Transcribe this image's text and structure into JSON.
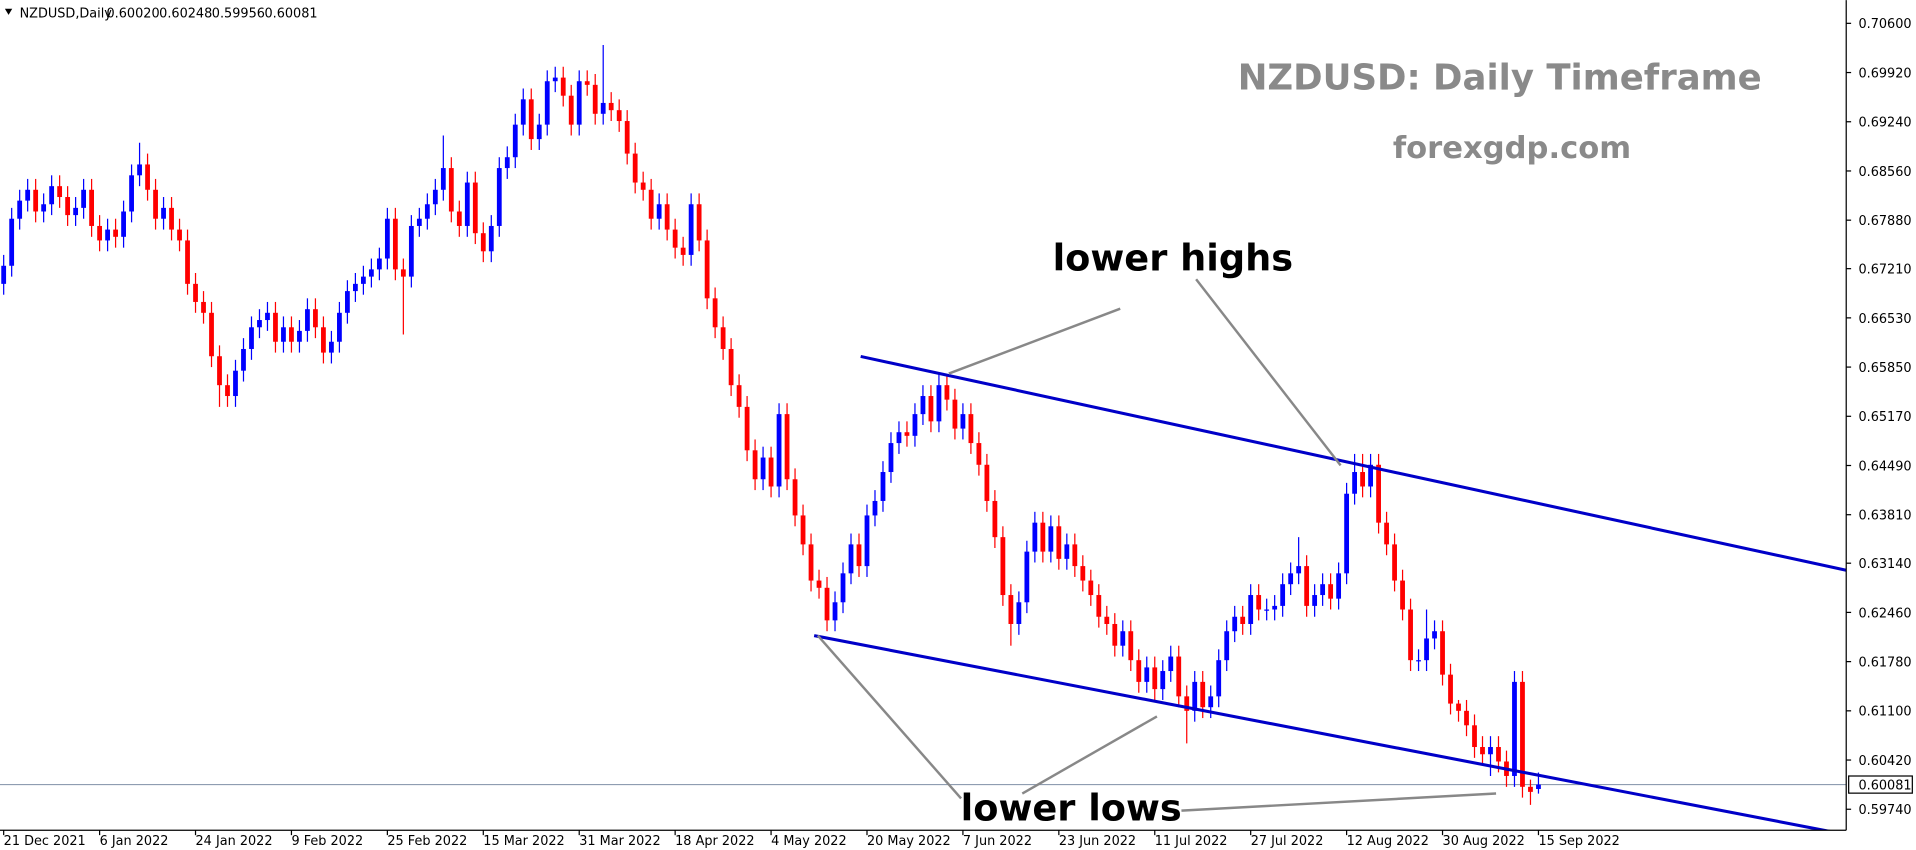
{
  "chart_data": {
    "type": "candlestick",
    "header": {
      "symbol": "NZDUSD,Daily",
      "ohlc": [
        "0.60020",
        "0.60248",
        "0.59956",
        "0.60081"
      ]
    },
    "title": "NZDUSD: Daily Timeframe",
    "subtitle": "forexgdp.com",
    "annotations": [
      "lower highs",
      "lower lows"
    ],
    "up_color": "#0000ff",
    "down_color": "#ff0000",
    "xlim": [
      -0.46,
      230.5
    ],
    "xticks": [
      {
        "value": 0,
        "label": "21 Dec 2021"
      },
      {
        "value": 12,
        "label": "6 Jan 2022"
      },
      {
        "value": 24,
        "label": "24 Jan 2022"
      },
      {
        "value": 36,
        "label": "9 Feb 2022"
      },
      {
        "value": 48,
        "label": "25 Feb 2022"
      },
      {
        "value": 60,
        "label": "15 Mar 2022"
      },
      {
        "value": 72,
        "label": "31 Mar 2022"
      },
      {
        "value": 84,
        "label": "18 Apr 2022"
      },
      {
        "value": 96,
        "label": "4 May 2022"
      },
      {
        "value": 108,
        "label": "20 May 2022"
      },
      {
        "value": 120,
        "label": "7 Jun 2022"
      },
      {
        "value": 132,
        "label": "23 Jun 2022"
      },
      {
        "value": 144,
        "label": "11 Jul 2022"
      },
      {
        "value": 156,
        "label": "27 Jul 2022"
      },
      {
        "value": 168,
        "label": "12 Aug 2022"
      },
      {
        "value": 180,
        "label": "30 Aug 2022"
      },
      {
        "value": 192,
        "label": "15 Sep 2022"
      }
    ],
    "ylim": [
      0.5945,
      0.7092
    ],
    "yticks": [
      {
        "value": 0.706,
        "label": "0.70600"
      },
      {
        "value": 0.6992,
        "label": "0.69920"
      },
      {
        "value": 0.6924,
        "label": "0.69240"
      },
      {
        "value": 0.6856,
        "label": "0.68560"
      },
      {
        "value": 0.6788,
        "label": "0.67880"
      },
      {
        "value": 0.6721,
        "label": "0.67210"
      },
      {
        "value": 0.6653,
        "label": "0.66530"
      },
      {
        "value": 0.6585,
        "label": "0.65850"
      },
      {
        "value": 0.6517,
        "label": "0.65170"
      },
      {
        "value": 0.6449,
        "label": "0.64490"
      },
      {
        "value": 0.6381,
        "label": "0.63810"
      },
      {
        "value": 0.6314,
        "label": "0.63140"
      },
      {
        "value": 0.6246,
        "label": "0.62460"
      },
      {
        "value": 0.6178,
        "label": "0.61780"
      },
      {
        "value": 0.611,
        "label": "0.61100"
      },
      {
        "value": 0.6042,
        "label": "0.60420"
      },
      {
        "value": 0.5974,
        "label": "0.59740"
      }
    ],
    "last_price": {
      "value": 0.60081,
      "label": "0.60081"
    },
    "open": [
      0.67,
      0.6725,
      0.679,
      0.6815,
      0.683,
      0.68,
      0.681,
      0.6835,
      0.682,
      0.6795,
      0.6805,
      0.683,
      0.678,
      0.676,
      0.6775,
      0.6765,
      0.68,
      0.685,
      0.6865,
      0.683,
      0.679,
      0.6805,
      0.6775,
      0.676,
      0.67,
      0.6675,
      0.666,
      0.66,
      0.656,
      0.6545,
      0.658,
      0.661,
      0.664,
      0.665,
      0.666,
      0.662,
      0.664,
      0.662,
      0.6635,
      0.6665,
      0.664,
      0.6605,
      0.662,
      0.666,
      0.669,
      0.67,
      0.671,
      0.672,
      0.6735,
      0.679,
      0.672,
      0.671,
      0.678,
      0.679,
      0.681,
      0.683,
      0.686,
      0.68,
      0.678,
      0.684,
      0.677,
      0.6745,
      0.678,
      0.686,
      0.6875,
      0.692,
      0.6955,
      0.69,
      0.692,
      0.698,
      0.6985,
      0.696,
      0.692,
      0.698,
      0.6975,
      0.6935,
      0.695,
      0.694,
      0.6925,
      0.688,
      0.684,
      0.683,
      0.679,
      0.681,
      0.6775,
      0.675,
      0.674,
      0.681,
      0.676,
      0.668,
      0.664,
      0.661,
      0.656,
      0.653,
      0.647,
      0.643,
      0.646,
      0.642,
      0.652,
      0.643,
      0.638,
      0.634,
      0.629,
      0.628,
      0.6235,
      0.626,
      0.63,
      0.634,
      0.631,
      0.638,
      0.64,
      0.644,
      0.648,
      0.6495,
      0.649,
      0.652,
      0.6545,
      0.651,
      0.656,
      0.654,
      0.65,
      0.652,
      0.648,
      0.645,
      0.64,
      0.635,
      0.627,
      0.623,
      0.626,
      0.633,
      0.637,
      0.633,
      0.6365,
      0.632,
      0.634,
      0.631,
      0.629,
      0.627,
      0.624,
      0.623,
      0.62,
      0.622,
      0.618,
      0.615,
      0.617,
      0.614,
      0.6165,
      0.6185,
      0.613,
      0.611,
      0.615,
      0.6115,
      0.613,
      0.618,
      0.622,
      0.624,
      0.623,
      0.627,
      0.625,
      0.625,
      0.6255,
      0.6285,
      0.63,
      0.631,
      0.6255,
      0.627,
      0.6285,
      0.6265,
      0.63,
      0.641,
      0.644,
      0.642,
      0.645,
      0.637,
      0.634,
      0.629,
      0.625,
      0.618,
      0.618,
      0.621,
      0.622,
      0.616,
      0.612,
      0.611,
      0.609,
      0.606,
      0.605,
      0.606,
      0.604,
      0.602,
      0.615,
      0.6005,
      0.6002
    ],
    "high": [
      0.674,
      0.6805,
      0.683,
      0.6845,
      0.6845,
      0.6825,
      0.685,
      0.685,
      0.6835,
      0.682,
      0.6845,
      0.6845,
      0.6795,
      0.679,
      0.679,
      0.6815,
      0.6865,
      0.6895,
      0.688,
      0.6845,
      0.682,
      0.682,
      0.679,
      0.6775,
      0.6715,
      0.669,
      0.6675,
      0.6615,
      0.6575,
      0.6595,
      0.6625,
      0.6655,
      0.6665,
      0.6675,
      0.6675,
      0.6655,
      0.6655,
      0.665,
      0.668,
      0.668,
      0.6655,
      0.6635,
      0.6675,
      0.6705,
      0.6715,
      0.6725,
      0.6735,
      0.675,
      0.6805,
      0.6805,
      0.6735,
      0.6795,
      0.6805,
      0.6825,
      0.6845,
      0.6905,
      0.6875,
      0.6815,
      0.6855,
      0.6855,
      0.6785,
      0.6795,
      0.6875,
      0.689,
      0.6935,
      0.697,
      0.697,
      0.6935,
      0.6995,
      0.7,
      0.7,
      0.6975,
      0.6995,
      0.6995,
      0.699,
      0.703,
      0.6965,
      0.6955,
      0.694,
      0.6895,
      0.6855,
      0.6845,
      0.6825,
      0.6825,
      0.679,
      0.6765,
      0.6825,
      0.6825,
      0.6775,
      0.6695,
      0.6655,
      0.6625,
      0.6575,
      0.6545,
      0.6485,
      0.6475,
      0.6475,
      0.6535,
      0.6535,
      0.6445,
      0.6395,
      0.6355,
      0.6305,
      0.6295,
      0.6275,
      0.6315,
      0.6355,
      0.6355,
      0.6395,
      0.6415,
      0.6455,
      0.6495,
      0.651,
      0.651,
      0.6535,
      0.656,
      0.656,
      0.6575,
      0.6575,
      0.6555,
      0.6535,
      0.6535,
      0.6495,
      0.6465,
      0.6415,
      0.6365,
      0.6285,
      0.6275,
      0.6345,
      0.6385,
      0.6385,
      0.638,
      0.638,
      0.6355,
      0.6355,
      0.6325,
      0.6305,
      0.6285,
      0.6255,
      0.6245,
      0.6235,
      0.6235,
      0.6195,
      0.6185,
      0.6185,
      0.618,
      0.62,
      0.62,
      0.6145,
      0.6165,
      0.6165,
      0.6145,
      0.6195,
      0.6235,
      0.6255,
      0.6255,
      0.6285,
      0.6285,
      0.6265,
      0.627,
      0.63,
      0.6315,
      0.635,
      0.6325,
      0.6285,
      0.63,
      0.63,
      0.6315,
      0.6425,
      0.6465,
      0.6465,
      0.6465,
      0.6465,
      0.6385,
      0.6355,
      0.6305,
      0.6265,
      0.6195,
      0.625,
      0.6235,
      0.6235,
      0.6175,
      0.6125,
      0.6125,
      0.6105,
      0.6075,
      0.6075,
      0.6075,
      0.6055,
      0.6165,
      0.6165,
      0.6015,
      0.60248
    ],
    "low": [
      0.6685,
      0.671,
      0.6775,
      0.68,
      0.6785,
      0.6785,
      0.6795,
      0.6805,
      0.678,
      0.678,
      0.679,
      0.6765,
      0.6745,
      0.6745,
      0.675,
      0.675,
      0.6785,
      0.6835,
      0.6815,
      0.6775,
      0.6775,
      0.676,
      0.6745,
      0.6685,
      0.666,
      0.6645,
      0.6585,
      0.653,
      0.653,
      0.653,
      0.6565,
      0.6595,
      0.6625,
      0.6635,
      0.6605,
      0.6605,
      0.6605,
      0.6605,
      0.662,
      0.6625,
      0.659,
      0.659,
      0.6605,
      0.6645,
      0.6675,
      0.6685,
      0.6695,
      0.6705,
      0.672,
      0.6705,
      0.663,
      0.6695,
      0.6765,
      0.6775,
      0.6795,
      0.6815,
      0.6785,
      0.6765,
      0.6765,
      0.6755,
      0.673,
      0.673,
      0.6765,
      0.6845,
      0.686,
      0.6905,
      0.6885,
      0.6885,
      0.6905,
      0.6965,
      0.6945,
      0.6905,
      0.6905,
      0.696,
      0.692,
      0.692,
      0.6925,
      0.691,
      0.6865,
      0.6825,
      0.6815,
      0.6775,
      0.6775,
      0.676,
      0.6735,
      0.6725,
      0.6725,
      0.6745,
      0.6665,
      0.6625,
      0.6595,
      0.6545,
      0.6515,
      0.6455,
      0.6415,
      0.6415,
      0.6405,
      0.6405,
      0.6415,
      0.6365,
      0.6325,
      0.6275,
      0.6265,
      0.622,
      0.622,
      0.6245,
      0.6285,
      0.6295,
      0.6295,
      0.6365,
      0.6385,
      0.6425,
      0.6465,
      0.6475,
      0.6475,
      0.6505,
      0.6495,
      0.6495,
      0.6525,
      0.6485,
      0.6485,
      0.6465,
      0.6435,
      0.6385,
      0.6335,
      0.6255,
      0.62,
      0.6215,
      0.6245,
      0.6315,
      0.6315,
      0.6315,
      0.6305,
      0.6305,
      0.6295,
      0.6275,
      0.6255,
      0.6225,
      0.6215,
      0.6185,
      0.6185,
      0.6165,
      0.6135,
      0.6135,
      0.6125,
      0.6125,
      0.615,
      0.6115,
      0.6065,
      0.6095,
      0.61,
      0.61,
      0.6115,
      0.6165,
      0.6205,
      0.6215,
      0.6215,
      0.6235,
      0.6235,
      0.6235,
      0.624,
      0.627,
      0.6285,
      0.624,
      0.624,
      0.6255,
      0.625,
      0.625,
      0.6285,
      0.6395,
      0.6405,
      0.6405,
      0.6355,
      0.6325,
      0.6275,
      0.6235,
      0.6165,
      0.6165,
      0.6165,
      0.6195,
      0.6145,
      0.6105,
      0.6095,
      0.6075,
      0.6045,
      0.6035,
      0.602,
      0.6025,
      0.6005,
      0.6005,
      0.599,
      0.598,
      0.59956
    ],
    "close": [
      0.6725,
      0.679,
      0.6815,
      0.683,
      0.68,
      0.681,
      0.6835,
      0.682,
      0.6795,
      0.6805,
      0.683,
      0.678,
      0.676,
      0.6775,
      0.6765,
      0.68,
      0.685,
      0.6865,
      0.683,
      0.679,
      0.6805,
      0.6775,
      0.676,
      0.67,
      0.6675,
      0.666,
      0.66,
      0.656,
      0.6545,
      0.658,
      0.661,
      0.664,
      0.665,
      0.666,
      0.662,
      0.664,
      0.662,
      0.6635,
      0.6665,
      0.664,
      0.6605,
      0.662,
      0.666,
      0.669,
      0.67,
      0.671,
      0.672,
      0.6735,
      0.679,
      0.672,
      0.671,
      0.678,
      0.679,
      0.681,
      0.683,
      0.686,
      0.68,
      0.678,
      0.684,
      0.677,
      0.6745,
      0.678,
      0.686,
      0.6875,
      0.692,
      0.6955,
      0.69,
      0.692,
      0.698,
      0.6985,
      0.696,
      0.692,
      0.698,
      0.6975,
      0.6935,
      0.695,
      0.694,
      0.6925,
      0.688,
      0.684,
      0.683,
      0.679,
      0.681,
      0.6775,
      0.675,
      0.674,
      0.681,
      0.676,
      0.668,
      0.664,
      0.661,
      0.656,
      0.653,
      0.647,
      0.643,
      0.646,
      0.642,
      0.652,
      0.643,
      0.638,
      0.634,
      0.629,
      0.628,
      0.6235,
      0.626,
      0.63,
      0.634,
      0.631,
      0.638,
      0.64,
      0.644,
      0.648,
      0.6495,
      0.649,
      0.652,
      0.6545,
      0.651,
      0.656,
      0.654,
      0.65,
      0.652,
      0.648,
      0.645,
      0.64,
      0.635,
      0.627,
      0.623,
      0.626,
      0.633,
      0.637,
      0.633,
      0.6365,
      0.632,
      0.634,
      0.631,
      0.629,
      0.627,
      0.624,
      0.623,
      0.62,
      0.622,
      0.618,
      0.615,
      0.617,
      0.614,
      0.6165,
      0.6185,
      0.613,
      0.611,
      0.615,
      0.6115,
      0.613,
      0.618,
      0.622,
      0.624,
      0.623,
      0.627,
      0.625,
      0.625,
      0.6255,
      0.6285,
      0.63,
      0.631,
      0.6255,
      0.627,
      0.6285,
      0.6265,
      0.63,
      0.641,
      0.644,
      0.642,
      0.645,
      0.637,
      0.634,
      0.629,
      0.625,
      0.618,
      0.618,
      0.621,
      0.622,
      0.616,
      0.612,
      0.611,
      0.609,
      0.606,
      0.605,
      0.606,
      0.604,
      0.602,
      0.615,
      0.6005,
      0.5998,
      0.60081
    ]
  }
}
